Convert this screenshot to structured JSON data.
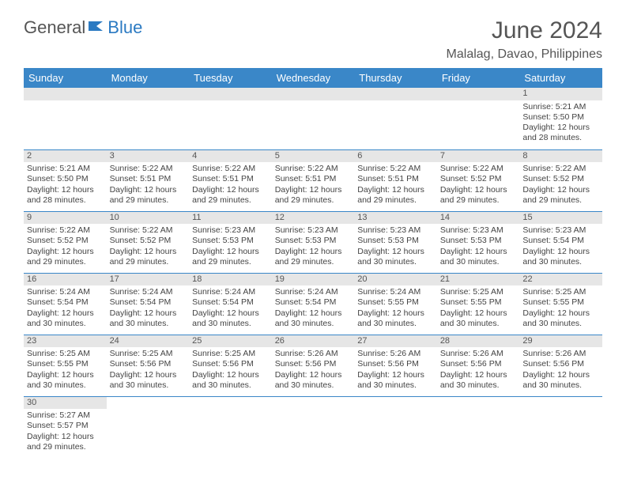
{
  "logo": {
    "part1": "General",
    "part2": "Blue"
  },
  "title": "June 2024",
  "location": "Malalag, Davao, Philippines",
  "colors": {
    "header_bg": "#3a87c8",
    "header_text": "#ffffff",
    "daynum_bg": "#e6e6e6",
    "row_border": "#3a87c8",
    "logo_gray": "#555555",
    "logo_blue": "#2b7ac2"
  },
  "weekdays": [
    "Sunday",
    "Monday",
    "Tuesday",
    "Wednesday",
    "Thursday",
    "Friday",
    "Saturday"
  ],
  "weeks": [
    [
      {
        "empty": true
      },
      {
        "empty": true
      },
      {
        "empty": true
      },
      {
        "empty": true
      },
      {
        "empty": true
      },
      {
        "empty": true
      },
      {
        "day": "1",
        "sunrise": "5:21 AM",
        "sunset": "5:50 PM",
        "daylight": "12 hours and 28 minutes."
      }
    ],
    [
      {
        "day": "2",
        "sunrise": "5:21 AM",
        "sunset": "5:50 PM",
        "daylight": "12 hours and 28 minutes."
      },
      {
        "day": "3",
        "sunrise": "5:22 AM",
        "sunset": "5:51 PM",
        "daylight": "12 hours and 29 minutes."
      },
      {
        "day": "4",
        "sunrise": "5:22 AM",
        "sunset": "5:51 PM",
        "daylight": "12 hours and 29 minutes."
      },
      {
        "day": "5",
        "sunrise": "5:22 AM",
        "sunset": "5:51 PM",
        "daylight": "12 hours and 29 minutes."
      },
      {
        "day": "6",
        "sunrise": "5:22 AM",
        "sunset": "5:51 PM",
        "daylight": "12 hours and 29 minutes."
      },
      {
        "day": "7",
        "sunrise": "5:22 AM",
        "sunset": "5:52 PM",
        "daylight": "12 hours and 29 minutes."
      },
      {
        "day": "8",
        "sunrise": "5:22 AM",
        "sunset": "5:52 PM",
        "daylight": "12 hours and 29 minutes."
      }
    ],
    [
      {
        "day": "9",
        "sunrise": "5:22 AM",
        "sunset": "5:52 PM",
        "daylight": "12 hours and 29 minutes."
      },
      {
        "day": "10",
        "sunrise": "5:22 AM",
        "sunset": "5:52 PM",
        "daylight": "12 hours and 29 minutes."
      },
      {
        "day": "11",
        "sunrise": "5:23 AM",
        "sunset": "5:53 PM",
        "daylight": "12 hours and 29 minutes."
      },
      {
        "day": "12",
        "sunrise": "5:23 AM",
        "sunset": "5:53 PM",
        "daylight": "12 hours and 29 minutes."
      },
      {
        "day": "13",
        "sunrise": "5:23 AM",
        "sunset": "5:53 PM",
        "daylight": "12 hours and 30 minutes."
      },
      {
        "day": "14",
        "sunrise": "5:23 AM",
        "sunset": "5:53 PM",
        "daylight": "12 hours and 30 minutes."
      },
      {
        "day": "15",
        "sunrise": "5:23 AM",
        "sunset": "5:54 PM",
        "daylight": "12 hours and 30 minutes."
      }
    ],
    [
      {
        "day": "16",
        "sunrise": "5:24 AM",
        "sunset": "5:54 PM",
        "daylight": "12 hours and 30 minutes."
      },
      {
        "day": "17",
        "sunrise": "5:24 AM",
        "sunset": "5:54 PM",
        "daylight": "12 hours and 30 minutes."
      },
      {
        "day": "18",
        "sunrise": "5:24 AM",
        "sunset": "5:54 PM",
        "daylight": "12 hours and 30 minutes."
      },
      {
        "day": "19",
        "sunrise": "5:24 AM",
        "sunset": "5:54 PM",
        "daylight": "12 hours and 30 minutes."
      },
      {
        "day": "20",
        "sunrise": "5:24 AM",
        "sunset": "5:55 PM",
        "daylight": "12 hours and 30 minutes."
      },
      {
        "day": "21",
        "sunrise": "5:25 AM",
        "sunset": "5:55 PM",
        "daylight": "12 hours and 30 minutes."
      },
      {
        "day": "22",
        "sunrise": "5:25 AM",
        "sunset": "5:55 PM",
        "daylight": "12 hours and 30 minutes."
      }
    ],
    [
      {
        "day": "23",
        "sunrise": "5:25 AM",
        "sunset": "5:55 PM",
        "daylight": "12 hours and 30 minutes."
      },
      {
        "day": "24",
        "sunrise": "5:25 AM",
        "sunset": "5:56 PM",
        "daylight": "12 hours and 30 minutes."
      },
      {
        "day": "25",
        "sunrise": "5:25 AM",
        "sunset": "5:56 PM",
        "daylight": "12 hours and 30 minutes."
      },
      {
        "day": "26",
        "sunrise": "5:26 AM",
        "sunset": "5:56 PM",
        "daylight": "12 hours and 30 minutes."
      },
      {
        "day": "27",
        "sunrise": "5:26 AM",
        "sunset": "5:56 PM",
        "daylight": "12 hours and 30 minutes."
      },
      {
        "day": "28",
        "sunrise": "5:26 AM",
        "sunset": "5:56 PM",
        "daylight": "12 hours and 30 minutes."
      },
      {
        "day": "29",
        "sunrise": "5:26 AM",
        "sunset": "5:56 PM",
        "daylight": "12 hours and 30 minutes."
      }
    ],
    [
      {
        "day": "30",
        "sunrise": "5:27 AM",
        "sunset": "5:57 PM",
        "daylight": "12 hours and 29 minutes."
      },
      {
        "empty": true
      },
      {
        "empty": true
      },
      {
        "empty": true
      },
      {
        "empty": true
      },
      {
        "empty": true
      },
      {
        "empty": true
      }
    ]
  ],
  "labels": {
    "sunrise": "Sunrise:",
    "sunset": "Sunset:",
    "daylight": "Daylight:"
  }
}
